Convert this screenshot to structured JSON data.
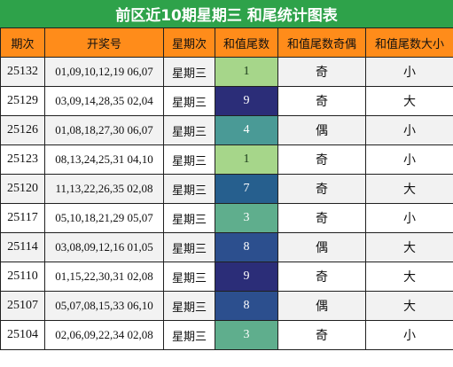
{
  "title": "前区近10期星期三 和尾统计图表",
  "headers": [
    "期次",
    "开奖号",
    "星期次",
    "和值尾数",
    "和值尾数奇偶",
    "和值尾数大小"
  ],
  "colors": {
    "title_bg": "#2ea24a",
    "header_bg": "#ff8c1a",
    "tail_scale": {
      "1": "#a6d68a",
      "3": "#5fae8d",
      "4": "#4a9a96",
      "7": "#265f8e",
      "8": "#2c4f8e",
      "9": "#2b2d78"
    }
  },
  "chart_data": {
    "type": "table",
    "title": "前区近10期星期三 和尾统计图表",
    "columns": [
      "期次",
      "开奖号",
      "星期次",
      "和值尾数",
      "和值尾数奇偶",
      "和值尾数大小"
    ],
    "rows": [
      {
        "issue": "25132",
        "numbers": "01,09,10,12,19 06,07",
        "day": "星期三",
        "tail": 1,
        "parity": "奇",
        "size": "小"
      },
      {
        "issue": "25129",
        "numbers": "03,09,14,28,35 02,04",
        "day": "星期三",
        "tail": 9,
        "parity": "奇",
        "size": "大"
      },
      {
        "issue": "25126",
        "numbers": "01,08,18,27,30 06,07",
        "day": "星期三",
        "tail": 4,
        "parity": "偶",
        "size": "小"
      },
      {
        "issue": "25123",
        "numbers": "08,13,24,25,31 04,10",
        "day": "星期三",
        "tail": 1,
        "parity": "奇",
        "size": "小"
      },
      {
        "issue": "25120",
        "numbers": "11,13,22,26,35 02,08",
        "day": "星期三",
        "tail": 7,
        "parity": "奇",
        "size": "大"
      },
      {
        "issue": "25117",
        "numbers": "05,10,18,21,29 05,07",
        "day": "星期三",
        "tail": 3,
        "parity": "奇",
        "size": "小"
      },
      {
        "issue": "25114",
        "numbers": "03,08,09,12,16 01,05",
        "day": "星期三",
        "tail": 8,
        "parity": "偶",
        "size": "大"
      },
      {
        "issue": "25110",
        "numbers": "01,15,22,30,31 02,08",
        "day": "星期三",
        "tail": 9,
        "parity": "奇",
        "size": "大"
      },
      {
        "issue": "25107",
        "numbers": "05,07,08,15,33 06,10",
        "day": "星期三",
        "tail": 8,
        "parity": "偶",
        "size": "大"
      },
      {
        "issue": "25104",
        "numbers": "02,06,09,22,34 02,08",
        "day": "星期三",
        "tail": 3,
        "parity": "奇",
        "size": "小"
      }
    ]
  }
}
